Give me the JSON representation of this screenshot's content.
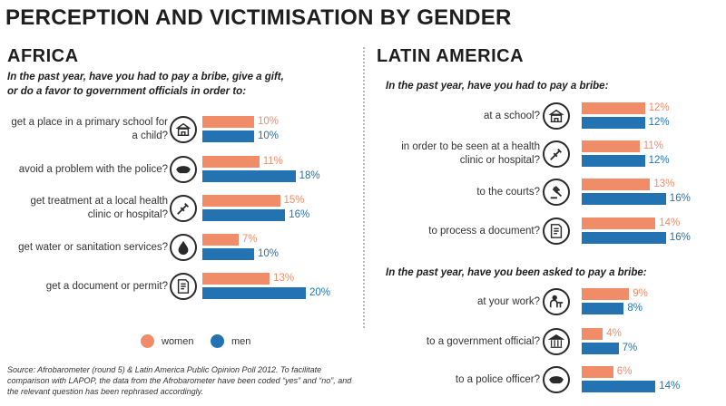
{
  "title": "PERCEPTION AND VICTIMISATION BY GENDER",
  "legend": {
    "women": "women",
    "men": "men"
  },
  "colors": {
    "women": "#f08d68",
    "men": "#2372b1"
  },
  "source": "Source: Afrobarometer (round 5) & Latin America Public Opinion Poll 2012. To facilitate comparison with LAPOP, the data from the Afrobarometer have been coded “yes” and “no”, and the relevant question has been rephrased accordingly.",
  "chart_data": [
    {
      "type": "bar",
      "title": "AFRICA",
      "subtitle": "In the past year, have you had to pay a bribe, give a gift, or do a favor to government officials in order to:",
      "categories": [
        "get a place in a primary school for a child?",
        "avoid a problem with the police?",
        "get treatment at a local health clinic or hospital?",
        "get water or sanitation services?",
        "get a document or permit?"
      ],
      "icons": [
        "school-icon",
        "police-cap-icon",
        "syringe-icon",
        "water-drop-icon",
        "document-icon"
      ],
      "series": [
        {
          "name": "women",
          "values": [
            10,
            11,
            15,
            7,
            13
          ]
        },
        {
          "name": "men",
          "values": [
            10,
            18,
            16,
            10,
            20
          ]
        }
      ],
      "value_labels": {
        "women": [
          "10%",
          "11%",
          "15%",
          "7%",
          "13%"
        ],
        "men": [
          "10%",
          "18%",
          "16%",
          "10%",
          "20%"
        ]
      },
      "unit": "%"
    },
    {
      "type": "bar",
      "title": "LATIN AMERICA",
      "subtitle": "In the past year, have you had to pay a bribe:",
      "categories": [
        "at a school?",
        "in order to be seen at a health clinic or hospital?",
        "to the courts?",
        "to process a document?"
      ],
      "icons": [
        "school-icon",
        "syringe-icon",
        "gavel-icon",
        "document-icon"
      ],
      "series": [
        {
          "name": "women",
          "values": [
            12,
            11,
            13,
            14
          ]
        },
        {
          "name": "men",
          "values": [
            12,
            12,
            16,
            16
          ]
        }
      ],
      "value_labels": {
        "women": [
          "12%",
          "11%",
          "13%",
          "14%"
        ],
        "men": [
          "12%",
          "12%",
          "16%",
          "16%"
        ]
      },
      "unit": "%"
    },
    {
      "type": "bar",
      "subtitle": "In the past year, have you been asked to pay a bribe:",
      "categories": [
        "at your work?",
        "to a government official?",
        "to a police officer?"
      ],
      "icons": [
        "worker-desk-icon",
        "government-building-icon",
        "police-cap-icon"
      ],
      "series": [
        {
          "name": "women",
          "values": [
            9,
            4,
            6
          ]
        },
        {
          "name": "men",
          "values": [
            8,
            7,
            14
          ]
        }
      ],
      "value_labels": {
        "women": [
          "9%",
          "4%",
          "6%"
        ],
        "men": [
          "8%",
          "7%",
          "14%"
        ]
      },
      "unit": "%"
    }
  ]
}
